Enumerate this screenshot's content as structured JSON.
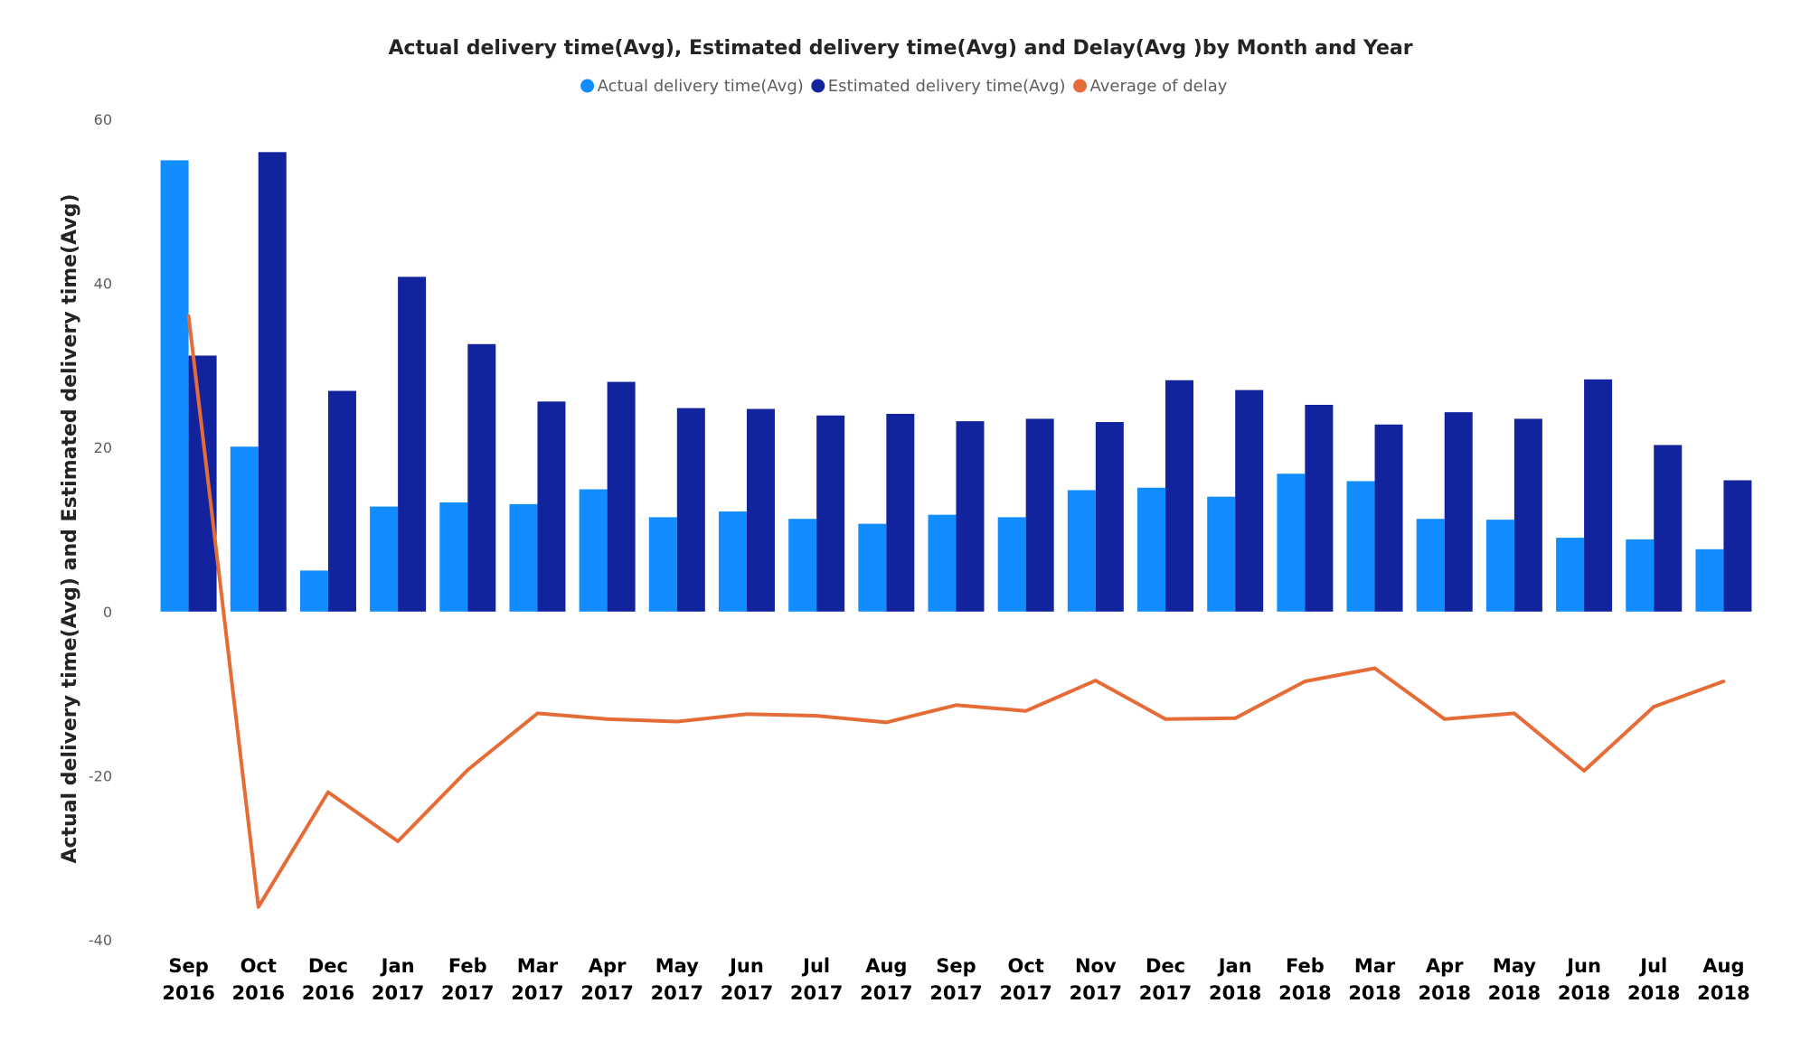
{
  "chart_data": {
    "type": "bar",
    "title": "Actual delivery time(Avg), Estimated delivery time(Avg) and Delay(Avg )by Month and Year",
    "ylabel": "Actual delivery time(Avg) and Estimated delivery time(Avg)",
    "xlabel": "",
    "ylim": [
      -40,
      60
    ],
    "yticks": [
      60,
      40,
      20,
      0,
      -20,
      -40
    ],
    "grid": false,
    "legend_position": "top-center",
    "categories": [
      [
        "Sep",
        "2016"
      ],
      [
        "Oct",
        "2016"
      ],
      [
        "Dec",
        "2016"
      ],
      [
        "Jan",
        "2017"
      ],
      [
        "Feb",
        "2017"
      ],
      [
        "Mar",
        "2017"
      ],
      [
        "Apr",
        "2017"
      ],
      [
        "May",
        "2017"
      ],
      [
        "Jun",
        "2017"
      ],
      [
        "Jul",
        "2017"
      ],
      [
        "Aug",
        "2017"
      ],
      [
        "Sep",
        "2017"
      ],
      [
        "Oct",
        "2017"
      ],
      [
        "Nov",
        "2017"
      ],
      [
        "Dec",
        "2017"
      ],
      [
        "Jan",
        "2018"
      ],
      [
        "Feb",
        "2018"
      ],
      [
        "Mar",
        "2018"
      ],
      [
        "Apr",
        "2018"
      ],
      [
        "May",
        "2018"
      ],
      [
        "Jun",
        "2018"
      ],
      [
        "Jul",
        "2018"
      ],
      [
        "Aug",
        "2018"
      ]
    ],
    "series": [
      {
        "name": "Actual delivery time(Avg)",
        "kind": "bar",
        "color": "#118dff",
        "values": [
          55,
          20.1,
          5,
          12.8,
          13.3,
          13.1,
          14.9,
          11.5,
          12.2,
          11.3,
          10.7,
          11.8,
          11.5,
          14.8,
          15.1,
          14,
          16.8,
          15.9,
          11.3,
          11.2,
          9,
          8.8,
          7.6
        ]
      },
      {
        "name": "Estimated delivery time(Avg)",
        "kind": "bar",
        "color": "#12239e",
        "values": [
          31.2,
          56,
          26.9,
          40.8,
          32.6,
          25.6,
          28,
          24.8,
          24.7,
          23.9,
          24.1,
          23.2,
          23.5,
          23.1,
          28.2,
          27,
          25.2,
          22.8,
          24.3,
          23.5,
          28.3,
          20.3,
          16
        ]
      },
      {
        "name": "Average of delay",
        "kind": "line",
        "color": "#e66c37",
        "values": [
          36,
          -36,
          -22,
          -28,
          -19.3,
          -12.4,
          -13.1,
          -13.4,
          -12.5,
          -12.7,
          -13.5,
          -11.4,
          -12.1,
          -8.4,
          -13.1,
          -13,
          -8.5,
          -6.9,
          -13.1,
          -12.4,
          -19.4,
          -11.6,
          -8.5
        ]
      }
    ]
  }
}
